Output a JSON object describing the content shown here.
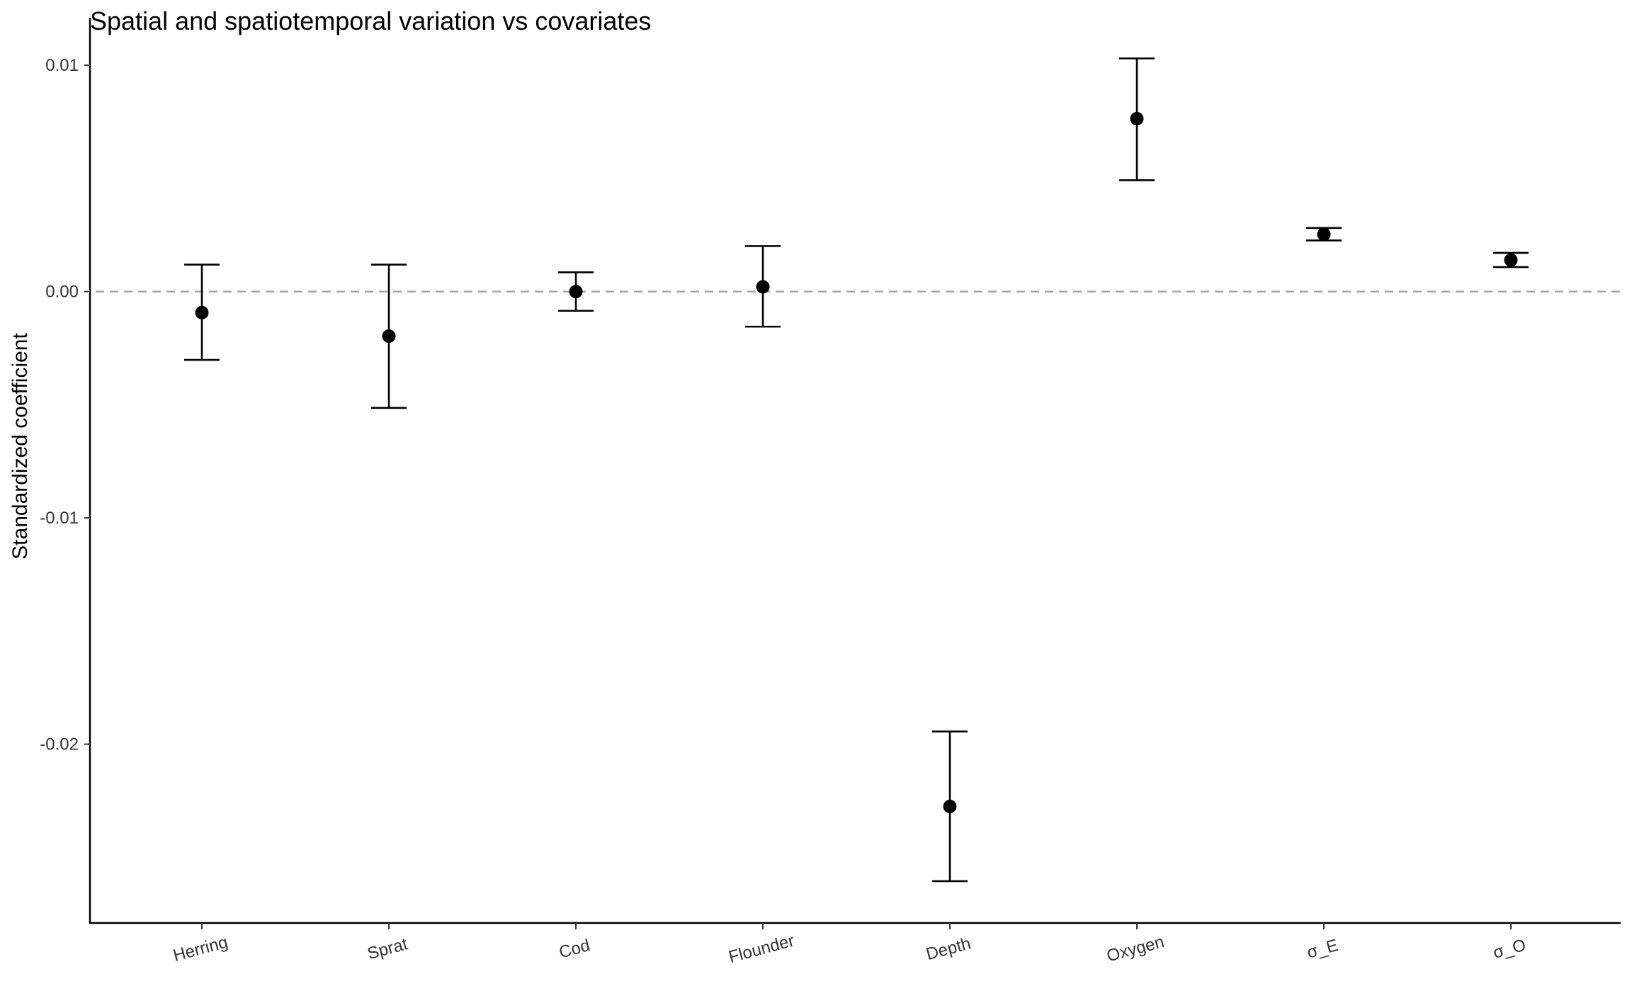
{
  "chart_data": {
    "type": "scatter",
    "title": "Spatial and spatiotemporal variation vs covariates",
    "xlabel": "",
    "ylabel": "Standardized coefficient",
    "categories": [
      "Herring",
      "Sprat",
      "Cod",
      "Flounder",
      "Depth",
      "Oxygen",
      "σ_E",
      "σ_O"
    ],
    "series": [
      {
        "values": [
          -0.00093,
          -0.00197,
          0.0,
          0.00021,
          -0.02275,
          0.00764,
          0.00253,
          0.00139
        ],
        "lower": [
          -0.00302,
          -0.00514,
          -0.00085,
          -0.00155,
          -0.02605,
          0.00492,
          0.00226,
          0.00108
        ],
        "upper": [
          0.00119,
          0.00119,
          0.00085,
          0.00201,
          -0.01944,
          0.0103,
          0.00281,
          0.00171
        ]
      }
    ],
    "reference_line": 0.0,
    "yticks": [
      -0.02,
      -0.01,
      0.0,
      0.01
    ],
    "ytick_labels": [
      "-0.02",
      "-0.01",
      "0.00",
      "0.01"
    ],
    "ylim": [
      -0.0279,
      0.0121
    ],
    "grid": false,
    "legend": "none",
    "colors": {
      "points": "#000000",
      "reference_line": "#a8a8a8",
      "axis": "#000000"
    }
  }
}
